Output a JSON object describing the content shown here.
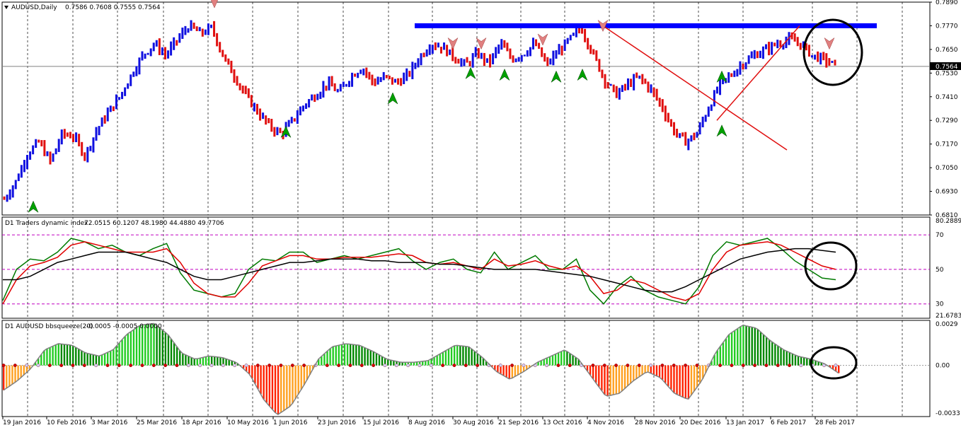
{
  "window": {
    "title": "AUDUSD,Daily",
    "ohlc": "0.7586 0.7608 0.7555 0.7564"
  },
  "colors": {
    "bull": "#1010e0",
    "bear": "#e01010",
    "grid": "#000000",
    "resistance": "#0000ff",
    "trendline": "#e01010",
    "tdi_green": "#007a00",
    "tdi_red": "#e00000",
    "tdi_black": "#000000",
    "level_line": "#c000c0",
    "hist_up_bright": "#22cc22",
    "hist_up_dark": "#008800",
    "hist_down_red": "#ff2200",
    "hist_down_orange": "#ffa020",
    "dot_red": "#d00000",
    "dot_white": "#d0d0ff",
    "circle": "#000000"
  },
  "chart_data": [
    {
      "type": "candlestick",
      "title": "AUDUSD,Daily",
      "ylim": [
        0.681,
        0.789
      ],
      "y_ticks": [
        "0.7890",
        "0.7770",
        "0.7650",
        "0.7530",
        "0.7410",
        "0.7290",
        "0.7170",
        "0.7050",
        "0.6930",
        "0.6810"
      ],
      "current_price": "0.7564",
      "series": [
        {
          "name": "price_path",
          "values": [
            0.689,
            0.698,
            0.712,
            0.718,
            0.708,
            0.722,
            0.721,
            0.711,
            0.724,
            0.733,
            0.741,
            0.752,
            0.762,
            0.768,
            0.762,
            0.77,
            0.777,
            0.773,
            0.776,
            0.761,
            0.751,
            0.741,
            0.733,
            0.726,
            0.722,
            0.729,
            0.737,
            0.742,
            0.748,
            0.743,
            0.751,
            0.756,
            0.748,
            0.751,
            0.748,
            0.752,
            0.761,
            0.768,
            0.766,
            0.761,
            0.757,
            0.763,
            0.758,
            0.768,
            0.76,
            0.763,
            0.768,
            0.757,
            0.764,
            0.77,
            0.776,
            0.763,
            0.75,
            0.742,
            0.747,
            0.751,
            0.745,
            0.736,
            0.724,
            0.718,
            0.722,
            0.735,
            0.747,
            0.752,
            0.758,
            0.762,
            0.765,
            0.768,
            0.77,
            0.768,
            0.762,
            0.76,
            0.757
          ]
        }
      ],
      "markers": {
        "up_arrows": [
          0.6852,
          0.7232,
          0.7402,
          0.753,
          0.7522,
          0.7512,
          0.7522,
          0.7512,
          0.7238
        ],
        "down_arrows": [
          0.789,
          0.768,
          0.768,
          0.77,
          0.777,
          0.768
        ]
      }
    },
    {
      "type": "line",
      "title": "D1 Traders dynamic index",
      "values_label": "72.0515 60.1207 48.1980 44.4880 49.7706",
      "ylim": [
        21.6783,
        80.2889
      ],
      "y_ticks": [
        "80.2889",
        "70",
        "50",
        "30",
        "21.6783"
      ],
      "levels": [
        70,
        50,
        30
      ],
      "series": [
        {
          "name": "green",
          "values": [
            32,
            50,
            56,
            55,
            60,
            68,
            66,
            62,
            64,
            60,
            58,
            62,
            65,
            48,
            38,
            36,
            34,
            36,
            50,
            56,
            55,
            60,
            60,
            54,
            56,
            58,
            56,
            58,
            60,
            62,
            55,
            50,
            54,
            56,
            50,
            48,
            60,
            50,
            54,
            58,
            50,
            50,
            56,
            38,
            30,
            40,
            46,
            38,
            34,
            32,
            30,
            40,
            58,
            66,
            64,
            66,
            68,
            62,
            55,
            50,
            45,
            44
          ]
        },
        {
          "name": "red",
          "values": [
            30,
            44,
            52,
            54,
            57,
            64,
            66,
            64,
            62,
            60,
            60,
            60,
            62,
            54,
            42,
            36,
            34,
            34,
            42,
            52,
            55,
            58,
            58,
            56,
            56,
            57,
            57,
            57,
            58,
            59,
            58,
            54,
            53,
            54,
            52,
            50,
            56,
            52,
            53,
            55,
            52,
            50,
            52,
            46,
            36,
            38,
            44,
            42,
            38,
            34,
            32,
            36,
            50,
            60,
            64,
            65,
            66,
            64,
            60,
            56,
            52,
            50
          ]
        },
        {
          "name": "black",
          "values": [
            44,
            44,
            46,
            50,
            54,
            56,
            58,
            60,
            60,
            60,
            58,
            56,
            54,
            50,
            46,
            44,
            44,
            46,
            48,
            50,
            52,
            54,
            54,
            55,
            56,
            56,
            56,
            55,
            55,
            54,
            54,
            54,
            53,
            53,
            52,
            51,
            50,
            50,
            50,
            50,
            49,
            48,
            47,
            46,
            44,
            42,
            40,
            38,
            37,
            37,
            40,
            44,
            48,
            52,
            56,
            58,
            60,
            61,
            62,
            62,
            61,
            60
          ]
        }
      ]
    },
    {
      "type": "bar",
      "title": "D1 AUDUSD bbsqueeze(20)",
      "values_label": "-0.0005 -0.0005 0.0000",
      "ylim": [
        -0.0033,
        0.0029
      ],
      "y_ticks": [
        "0.0029",
        "0.00",
        "-0.0033"
      ],
      "series": [
        {
          "name": "momentum",
          "values": [
            -0.0016,
            -0.001,
            -0.0002,
            0.001,
            0.0014,
            0.0013,
            0.0008,
            0.0006,
            0.001,
            0.002,
            0.0026,
            0.0027,
            0.002,
            0.0008,
            0.0004,
            0.0006,
            0.0005,
            0.0002,
            -0.0006,
            -0.0022,
            -0.0032,
            -0.0026,
            -0.0012,
            0.0004,
            0.0012,
            0.0014,
            0.0013,
            0.0009,
            0.0004,
            0.0002,
            0.0002,
            0.0003,
            0.0008,
            0.0013,
            0.0012,
            0.0005,
            -0.0004,
            -0.0009,
            -0.0004,
            0.0002,
            0.0006,
            0.001,
            0.0004,
            -0.0008,
            -0.002,
            -0.0018,
            -0.001,
            -0.0004,
            -0.0008,
            -0.0018,
            -0.0022,
            -0.001,
            0.0008,
            0.002,
            0.0026,
            0.0024,
            0.0016,
            0.001,
            0.0006,
            0.0004,
            0.0001,
            -0.0005
          ]
        }
      ]
    }
  ],
  "x_axis": {
    "tick_labels": [
      "19 Jan 2016",
      "10 Feb 2016",
      "3 Mar 2016",
      "25 Mar 2016",
      "18 Apr 2016",
      "10 May 2016",
      "1 Jun 2016",
      "23 Jun 2016",
      "15 Jul 2016",
      "8 Aug 2016",
      "30 Aug 2016",
      "21 Sep 2016",
      "13 Oct 2016",
      "4 Nov 2016",
      "28 Nov 2016",
      "20 Dec 2016",
      "13 Jan 2017",
      "6 Feb 2017",
      "28 Feb 2017"
    ]
  }
}
